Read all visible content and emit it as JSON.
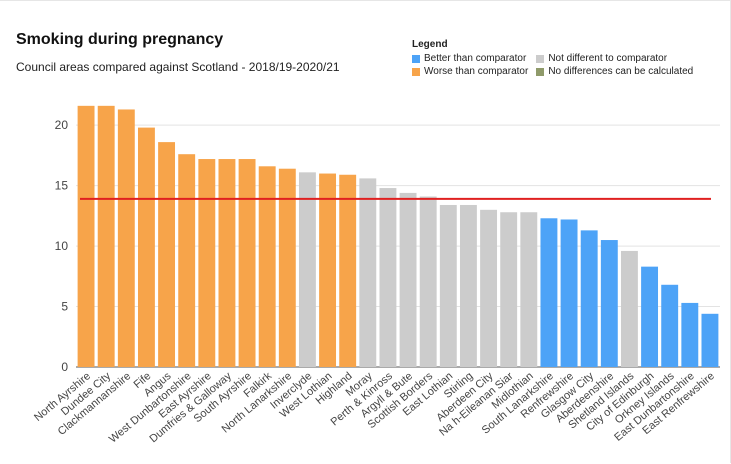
{
  "title": "Smoking during pregnancy",
  "subtitle": "Council areas compared against Scotland - 2018/19-2020/21",
  "legend": {
    "title": "Legend",
    "items": [
      {
        "label": "Better than comparator",
        "color": "#4da3f7"
      },
      {
        "label": "Not different to comparator",
        "color": "#cccccc"
      },
      {
        "label": "Worse than comparator",
        "color": "#f7a44a"
      },
      {
        "label": "No differences can be calculated",
        "color": "#8f9a6a"
      }
    ]
  },
  "chart_data": {
    "type": "bar",
    "title": "Smoking during pregnancy",
    "subtitle": "Council areas compared against Scotland - 2018/19-2020/21",
    "xlabel": "",
    "ylabel": "",
    "ylim": [
      0,
      22
    ],
    "yticks": [
      0,
      5,
      10,
      15,
      20
    ],
    "grid": true,
    "legend_position": "top-right",
    "comparator_value": 13.9,
    "comparator_color": "#e02020",
    "colors": {
      "worse": "#f7a44a",
      "not_different": "#cccccc",
      "better": "#4da3f7"
    },
    "categories": [
      "North Ayrshire",
      "Dundee City",
      "Clackmannanshire",
      "Fife",
      "Angus",
      "West Dunbartonshire",
      "East Ayrshire",
      "Dumfries & Galloway",
      "South Ayrshire",
      "Falkirk",
      "North Lanarkshire",
      "Inverclyde",
      "West Lothian",
      "Highland",
      "Moray",
      "Perth & Kinross",
      "Argyll & Bute",
      "Scottish Borders",
      "East Lothian",
      "Stirling",
      "Aberdeen City",
      "Na h-Eileanan Siar",
      "Midlothian",
      "South Lanarkshire",
      "Renfrewshire",
      "Glasgow City",
      "Aberdeenshire",
      "Shetland Islands",
      "City of Edinburgh",
      "Orkney Islands",
      "East Dunbartonshire",
      "East Renfrewshire"
    ],
    "values": [
      21.6,
      21.6,
      21.3,
      19.8,
      18.6,
      17.6,
      17.2,
      17.2,
      17.2,
      16.6,
      16.4,
      16.1,
      16.0,
      15.9,
      15.6,
      14.8,
      14.4,
      14.1,
      13.4,
      13.4,
      13.0,
      12.8,
      12.8,
      12.3,
      12.2,
      11.3,
      10.5,
      9.6,
      8.3,
      6.8,
      5.3,
      4.4
    ],
    "status": [
      "worse",
      "worse",
      "worse",
      "worse",
      "worse",
      "worse",
      "worse",
      "worse",
      "worse",
      "worse",
      "worse",
      "not_different",
      "worse",
      "worse",
      "not_different",
      "not_different",
      "not_different",
      "not_different",
      "not_different",
      "not_different",
      "not_different",
      "not_different",
      "not_different",
      "better",
      "better",
      "better",
      "better",
      "not_different",
      "better",
      "better",
      "better",
      "better"
    ]
  }
}
